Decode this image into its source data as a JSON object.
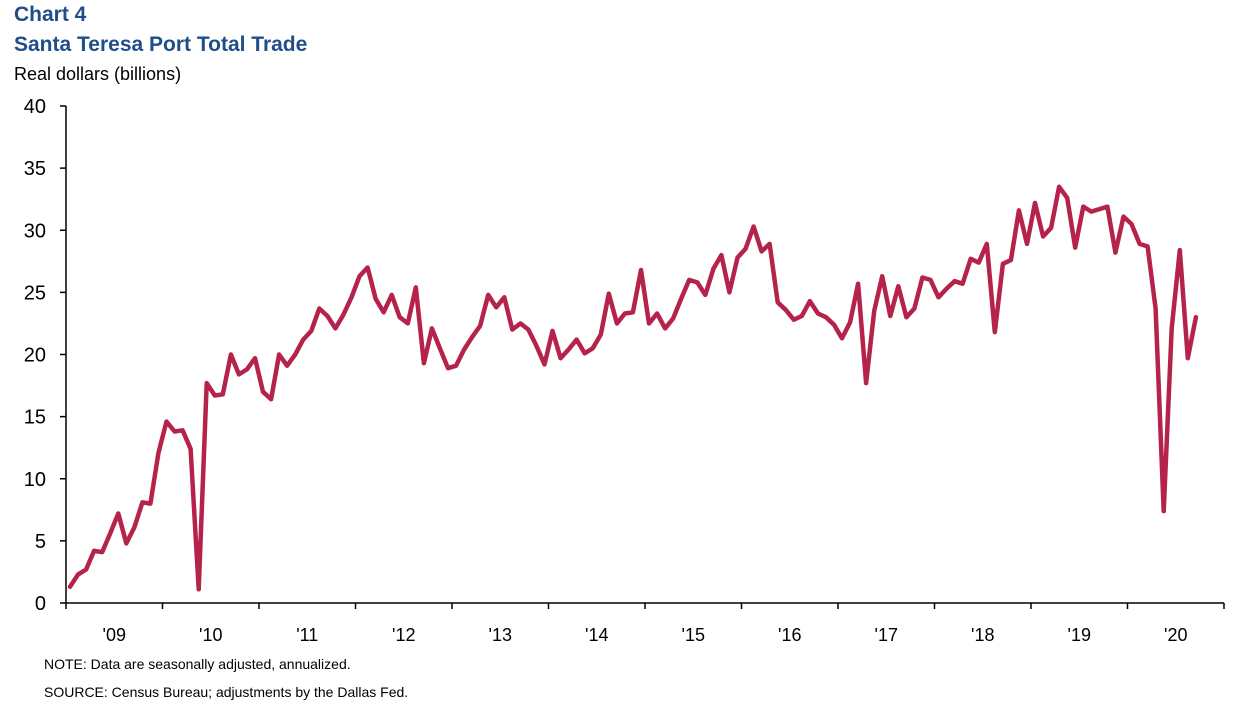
{
  "header": {
    "chart_number": "Chart 4",
    "title": "Santa Teresa Port Total Trade",
    "unit_label": "Real dollars (billions)"
  },
  "footer": {
    "note": "NOTE:  Data are seasonally adjusted, annualized.",
    "source": "SOURCE:  Census Bureau; adjustments  by the Dallas Fed."
  },
  "colors": {
    "line": "#b5234a",
    "title": "#1f4e8a",
    "axis": "#000000"
  },
  "chart_data": {
    "type": "line",
    "title": "Santa Teresa Port Total Trade",
    "ylabel": "Real dollars (billions)",
    "xlabel": "",
    "ylim": [
      0,
      40
    ],
    "yticks": [
      0,
      5,
      10,
      15,
      20,
      25,
      30,
      35,
      40
    ],
    "xlim": [
      "2009-01",
      "2020-12"
    ],
    "xtick_labels": [
      "'09",
      "'10",
      "'11",
      "'12",
      "'13",
      "'14",
      "'15",
      "'16",
      "'17",
      "'18",
      "'19",
      "'20"
    ],
    "grid": false,
    "frequency": "monthly",
    "series": [
      {
        "by_year": {
          "2009": [
            1.3,
            2.3,
            2.7,
            4.2,
            4.1,
            5.6,
            7.2,
            4.8,
            6.1,
            8.1,
            8.0,
            12.1
          ],
          "2010": [
            14.6,
            13.8,
            13.9,
            12.4,
            1.1,
            17.7,
            16.7,
            16.8,
            20.0,
            18.4,
            18.8,
            19.7
          ],
          "2011": [
            17.0,
            16.4,
            20.0,
            19.1,
            20.0,
            21.2,
            21.9,
            23.7,
            23.1,
            22.1,
            23.2,
            24.6
          ],
          "2012": [
            26.3,
            27.0,
            24.5,
            23.4,
            24.8,
            23.0,
            22.5,
            25.4,
            19.3,
            22.1,
            20.5,
            18.9
          ],
          "2013": [
            19.1,
            20.4,
            21.4,
            22.3,
            24.8,
            23.8,
            24.6,
            22.0,
            22.5,
            22.0,
            20.7,
            19.2
          ],
          "2014": [
            21.9,
            19.7,
            20.4,
            21.2,
            20.1,
            20.5,
            21.6,
            24.9,
            22.5,
            23.3,
            23.4,
            26.8
          ],
          "2015": [
            22.5,
            23.3,
            22.1,
            22.9,
            24.5,
            26.0,
            25.8,
            24.8,
            26.9,
            28.0,
            25.0,
            27.8
          ],
          "2016": [
            28.5,
            30.3,
            28.3,
            28.9,
            24.2,
            23.6,
            22.8,
            23.1,
            24.3,
            23.3,
            23.0,
            22.4
          ],
          "2017": [
            21.3,
            22.6,
            25.7,
            17.7,
            23.5,
            26.3,
            23.1,
            25.5,
            23.0,
            23.7,
            26.2,
            26.0
          ],
          "2018": [
            24.6,
            25.3,
            25.9,
            25.7,
            27.7,
            27.4,
            28.9,
            21.8,
            27.3,
            27.6,
            31.6,
            28.9
          ],
          "2019": [
            32.2,
            29.5,
            30.2,
            33.5,
            32.6,
            28.6,
            31.9,
            31.5,
            31.7,
            31.9,
            28.2,
            31.1
          ],
          "2020": [
            30.5,
            28.9,
            28.7,
            23.7,
            7.4,
            22.1,
            28.4,
            19.7,
            23.0
          ]
        }
      }
    ]
  }
}
